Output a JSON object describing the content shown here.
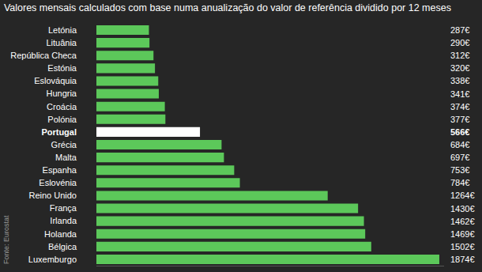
{
  "chart_data": {
    "type": "bar",
    "orientation": "horizontal",
    "title": "Valores mensais calculados com base numa anualização do valor de referência dividido por 12 meses",
    "categories": [
      "Letónia",
      "Lituânia",
      "República Checa",
      "Estónia",
      "Eslováquia",
      "Hungria",
      "Croácia",
      "Polónia",
      "Portugal",
      "Grécia",
      "Malta",
      "Espanha",
      "Eslovénia",
      "Reino Unido",
      "França",
      "Irlanda",
      "Holanda",
      "Bélgica",
      "Luxemburgo"
    ],
    "values": [
      287,
      290,
      312,
      320,
      338,
      341,
      374,
      377,
      566,
      684,
      697,
      753,
      784,
      1264,
      1430,
      1462,
      1469,
      1502,
      1874
    ],
    "value_labels": [
      "287€",
      "290€",
      "312€",
      "320€",
      "338€",
      "341€",
      "374€",
      "377€",
      "566€",
      "684€",
      "697€",
      "753€",
      "784€",
      "1264€",
      "1430€",
      "1462€",
      "1469€",
      "1502€",
      "1874€"
    ],
    "colors": [
      "#5cc85a",
      "#5cc85a",
      "#5cc85a",
      "#5cc85a",
      "#5cc85a",
      "#5cc85a",
      "#5cc85a",
      "#5cc85a",
      "#ffffff",
      "#5cc85a",
      "#5cc85a",
      "#5cc85a",
      "#5cc85a",
      "#5cc85a",
      "#5cc85a",
      "#5cc85a",
      "#5cc85a",
      "#5cc85a",
      "#5cc85a"
    ],
    "xlim": [
      0,
      1900
    ],
    "data_labels": true,
    "tick_labels": "y",
    "grid": false,
    "annotations": [
      "Fonte: Eurostat"
    ]
  }
}
